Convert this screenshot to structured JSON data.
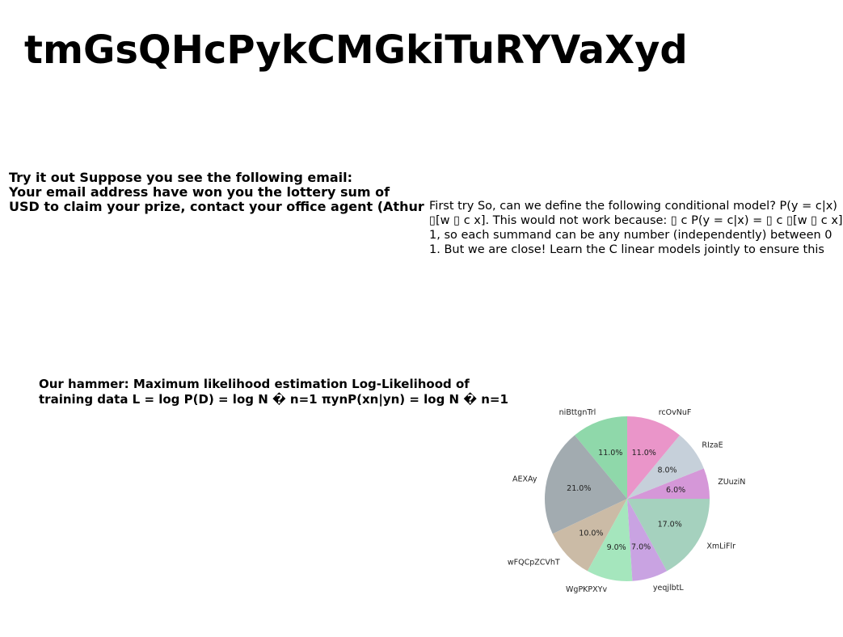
{
  "title": "tmGsQHcPykCMGkiTuRYVaXyd",
  "email_block": {
    "lines": [
      "Try it out Suppose you see the following email:",
      "Your email address have won you the lottery sum of",
      "USD to claim your prize, contact your office agent (Athur"
    ]
  },
  "model_block": {
    "lines": [
      "First try So, can we define the following conditional model? P(y = c|x)",
      "▯[w ▯ c x]. This would not work because: ▯ c P(y = c|x) = ▯ c ▯[w ▯ c x]",
      "1, so each summand can be any number (independently) between 0",
      "1. But we are close! Learn the C linear models jointly to ensure this"
    ]
  },
  "hammer_block": {
    "lines": [
      "Our hammer: Maximum likelihood estimation Log-Likelihood of",
      "training data L = log P(D) = log N � n=1 πynP(xn|yn) = log N � n=1"
    ]
  },
  "chart_data": {
    "type": "pie",
    "start_angle": 90,
    "direction": "counterclockwise",
    "slices": [
      {
        "label": "niBttgnTrl",
        "value": 11.0,
        "pct_label": "11.0%",
        "color": "#8fd8aa"
      },
      {
        "label": "AEXAy",
        "value": 21.0,
        "pct_label": "21.0%",
        "color": "#a2abb0"
      },
      {
        "label": "wFQCpZCVhT",
        "value": 10.0,
        "pct_label": "10.0%",
        "color": "#cbbba6"
      },
      {
        "label": "WgPKPXYv",
        "value": 9.0,
        "pct_label": "9.0%",
        "color": "#a5e6bd"
      },
      {
        "label": "yeqjlbtL",
        "value": 7.0,
        "pct_label": "7.0%",
        "color": "#c9a3e2"
      },
      {
        "label": "XmLiFlr",
        "value": 17.0,
        "pct_label": "17.0%",
        "color": "#a5d1be"
      },
      {
        "label": "ZUuziN",
        "value": 6.0,
        "pct_label": "6.0%",
        "color": "#d597d8"
      },
      {
        "label": "RIzaE",
        "value": 8.0,
        "pct_label": "8.0%",
        "color": "#c6d0da"
      },
      {
        "label": "rcOvNuF",
        "value": 11.0,
        "pct_label": "11.0%",
        "color": "#ea95c9"
      }
    ]
  }
}
